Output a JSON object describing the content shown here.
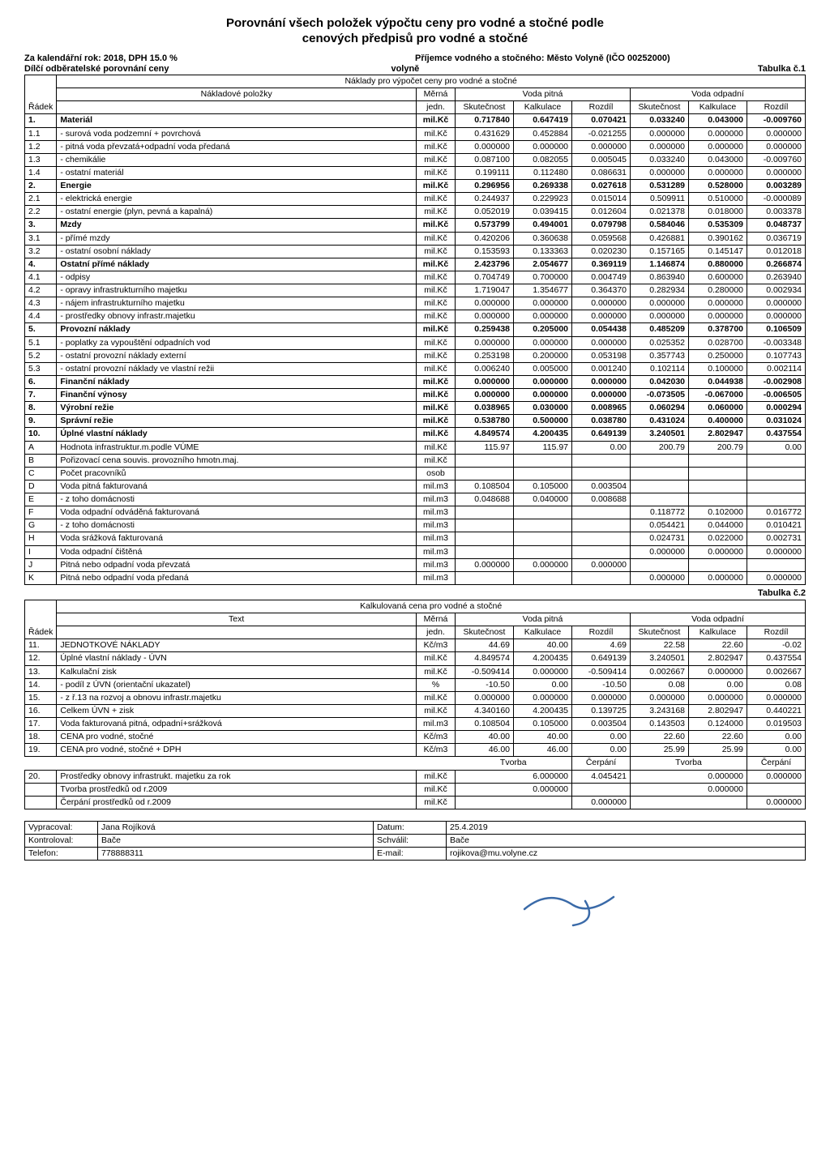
{
  "title1": "Porovnání všech položek výpočtu ceny pro vodné a stočné podle",
  "title2": "cenových předpisů pro vodné a stočné",
  "meta": {
    "year_line": "Za kalendářní rok: 2018, DPH 15.0 %",
    "recipient": "Příjemce vodného a stočného: Město Volyně (IČO 00252000)",
    "sub_line_left": "Dílčí odběratelské porovnání ceny",
    "sub_line_mid": "volyně",
    "tab1": "Tabulka č.1",
    "tab2": "Tabulka č.2"
  },
  "t1": {
    "hdr_top": "Náklady pro výpočet ceny pro vodné a stočné",
    "col_nakl": "Nákladové položky",
    "col_merna": "Měrná",
    "col_jedn": "jedn.",
    "col_radek": "Řádek",
    "grp_pitna": "Voda pitná",
    "grp_odpad": "Voda odpadní",
    "col_skut": "Skutečnost",
    "col_kalk": "Kalkulace",
    "col_rozd": "Rozdíl",
    "rows": [
      {
        "r": "1.",
        "label": "Materiál",
        "u": "mil.Kč",
        "v": [
          "0.717840",
          "0.647419",
          "0.070421",
          "0.033240",
          "0.043000",
          "-0.009760"
        ],
        "b": 1
      },
      {
        "r": "1.1",
        "label": "- surová voda podzemní + povrchová",
        "u": "mil.Kč",
        "v": [
          "0.431629",
          "0.452884",
          "-0.021255",
          "0.000000",
          "0.000000",
          "0.000000"
        ]
      },
      {
        "r": "1.2",
        "label": "- pitná voda převzatá+odpadní voda předaná",
        "u": "mil.Kč",
        "v": [
          "0.000000",
          "0.000000",
          "0.000000",
          "0.000000",
          "0.000000",
          "0.000000"
        ]
      },
      {
        "r": "1.3",
        "label": "- chemikálie",
        "u": "mil.Kč",
        "v": [
          "0.087100",
          "0.082055",
          "0.005045",
          "0.033240",
          "0.043000",
          "-0.009760"
        ]
      },
      {
        "r": "1.4",
        "label": "- ostatní materiál",
        "u": "mil.Kč",
        "v": [
          "0.199111",
          "0.112480",
          "0.086631",
          "0.000000",
          "0.000000",
          "0.000000"
        ]
      },
      {
        "r": "2.",
        "label": "Energie",
        "u": "mil.Kč",
        "v": [
          "0.296956",
          "0.269338",
          "0.027618",
          "0.531289",
          "0.528000",
          "0.003289"
        ],
        "b": 1
      },
      {
        "r": "2.1",
        "label": "- elektrická energie",
        "u": "mil.Kč",
        "v": [
          "0.244937",
          "0.229923",
          "0.015014",
          "0.509911",
          "0.510000",
          "-0.000089"
        ]
      },
      {
        "r": "2.2",
        "label": "- ostatní energie (plyn, pevná a kapalná)",
        "u": "mil.Kč",
        "v": [
          "0.052019",
          "0.039415",
          "0.012604",
          "0.021378",
          "0.018000",
          "0.003378"
        ]
      },
      {
        "r": "3.",
        "label": "Mzdy",
        "u": "mil.Kč",
        "v": [
          "0.573799",
          "0.494001",
          "0.079798",
          "0.584046",
          "0.535309",
          "0.048737"
        ],
        "b": 1
      },
      {
        "r": "3.1",
        "label": "- přímé mzdy",
        "u": "mil.Kč",
        "v": [
          "0.420206",
          "0.360638",
          "0.059568",
          "0.426881",
          "0.390162",
          "0.036719"
        ]
      },
      {
        "r": "3.2",
        "label": "- ostatní osobní náklady",
        "u": "mil.Kč",
        "v": [
          "0.153593",
          "0.133363",
          "0.020230",
          "0.157165",
          "0.145147",
          "0.012018"
        ]
      },
      {
        "r": "4.",
        "label": "Ostatní přímé náklady",
        "u": "mil.Kč",
        "v": [
          "2.423796",
          "2.054677",
          "0.369119",
          "1.146874",
          "0.880000",
          "0.266874"
        ],
        "b": 1
      },
      {
        "r": "4.1",
        "label": "- odpisy",
        "u": "mil.Kč",
        "v": [
          "0.704749",
          "0.700000",
          "0.004749",
          "0.863940",
          "0.600000",
          "0.263940"
        ]
      },
      {
        "r": "4.2",
        "label": "- opravy infrastrukturního majetku",
        "u": "mil.Kč",
        "v": [
          "1.719047",
          "1.354677",
          "0.364370",
          "0.282934",
          "0.280000",
          "0.002934"
        ]
      },
      {
        "r": "4.3",
        "label": "- nájem infrastrukturního majetku",
        "u": "mil.Kč",
        "v": [
          "0.000000",
          "0.000000",
          "0.000000",
          "0.000000",
          "0.000000",
          "0.000000"
        ]
      },
      {
        "r": "4.4",
        "label": "- prostředky obnovy infrastr.majetku",
        "u": "mil.Kč",
        "v": [
          "0.000000",
          "0.000000",
          "0.000000",
          "0.000000",
          "0.000000",
          "0.000000"
        ]
      },
      {
        "r": "5.",
        "label": "Provozní náklady",
        "u": "mil.Kč",
        "v": [
          "0.259438",
          "0.205000",
          "0.054438",
          "0.485209",
          "0.378700",
          "0.106509"
        ],
        "b": 1
      },
      {
        "r": "5.1",
        "label": "- poplatky za vypouštění odpadních vod",
        "u": "mil.Kč",
        "v": [
          "0.000000",
          "0.000000",
          "0.000000",
          "0.025352",
          "0.028700",
          "-0.003348"
        ]
      },
      {
        "r": "5.2",
        "label": "- ostatní provozní náklady externí",
        "u": "mil.Kč",
        "v": [
          "0.253198",
          "0.200000",
          "0.053198",
          "0.357743",
          "0.250000",
          "0.107743"
        ]
      },
      {
        "r": "5.3",
        "label": "- ostatní provozní náklady ve vlastní režii",
        "u": "mil.Kč",
        "v": [
          "0.006240",
          "0.005000",
          "0.001240",
          "0.102114",
          "0.100000",
          "0.002114"
        ]
      },
      {
        "r": "6.",
        "label": "Finanční náklady",
        "u": "mil.Kč",
        "v": [
          "0.000000",
          "0.000000",
          "0.000000",
          "0.042030",
          "0.044938",
          "-0.002908"
        ],
        "b": 1
      },
      {
        "r": "7.",
        "label": "Finanční výnosy",
        "u": "mil.Kč",
        "v": [
          "0.000000",
          "0.000000",
          "0.000000",
          "-0.073505",
          "-0.067000",
          "-0.006505"
        ],
        "b": 1
      },
      {
        "r": "8.",
        "label": "Výrobní režie",
        "u": "mil.Kč",
        "v": [
          "0.038965",
          "0.030000",
          "0.008965",
          "0.060294",
          "0.060000",
          "0.000294"
        ],
        "b": 1
      },
      {
        "r": "9.",
        "label": "Správní režie",
        "u": "mil.Kč",
        "v": [
          "0.538780",
          "0.500000",
          "0.038780",
          "0.431024",
          "0.400000",
          "0.031024"
        ],
        "b": 1
      },
      {
        "r": "10.",
        "label": "Úplné vlastní náklady",
        "u": "mil.Kč",
        "v": [
          "4.849574",
          "4.200435",
          "0.649139",
          "3.240501",
          "2.802947",
          "0.437554"
        ],
        "b": 1
      },
      {
        "r": "A",
        "label": "Hodnota infrastruktur.m.podle VÚME",
        "u": "mil.Kč",
        "v": [
          "115.97",
          "115.97",
          "0.00",
          "200.79",
          "200.79",
          "0.00"
        ]
      },
      {
        "r": "B",
        "label": "Pořizovací cena souvis. provozního hmotn.maj.",
        "u": "mil.Kč",
        "v": [
          "",
          "",
          "",
          "",
          "",
          ""
        ]
      },
      {
        "r": "C",
        "label": "Počet pracovníků",
        "u": "osob",
        "v": [
          "",
          "",
          "",
          "",
          "",
          ""
        ]
      },
      {
        "r": "D",
        "label": "Voda pitná fakturovaná",
        "u": "mil.m3",
        "v": [
          "0.108504",
          "0.105000",
          "0.003504",
          "",
          "",
          ""
        ]
      },
      {
        "r": "E",
        "label": "- z toho domácnosti",
        "u": "mil.m3",
        "v": [
          "0.048688",
          "0.040000",
          "0.008688",
          "",
          "",
          ""
        ]
      },
      {
        "r": "F",
        "label": "Voda odpadní odváděná fakturovaná",
        "u": "mil.m3",
        "v": [
          "",
          "",
          "",
          "0.118772",
          "0.102000",
          "0.016772"
        ]
      },
      {
        "r": "G",
        "label": "- z toho domácnosti",
        "u": "mil.m3",
        "v": [
          "",
          "",
          "",
          "0.054421",
          "0.044000",
          "0.010421"
        ]
      },
      {
        "r": "H",
        "label": "Voda srážková fakturovaná",
        "u": "mil.m3",
        "v": [
          "",
          "",
          "",
          "0.024731",
          "0.022000",
          "0.002731"
        ]
      },
      {
        "r": "I",
        "label": "Voda odpadní čištěná",
        "u": "mil.m3",
        "v": [
          "",
          "",
          "",
          "0.000000",
          "0.000000",
          "0.000000"
        ]
      },
      {
        "r": "J",
        "label": "Pitná nebo odpadní voda převzatá",
        "u": "mil.m3",
        "v": [
          "0.000000",
          "0.000000",
          "0.000000",
          "",
          "",
          ""
        ]
      },
      {
        "r": "K",
        "label": "Pitná nebo odpadní voda předaná",
        "u": "mil.m3",
        "v": [
          "",
          "",
          "",
          "0.000000",
          "0.000000",
          "0.000000"
        ]
      }
    ]
  },
  "t2": {
    "hdr_top": "Kalkulovaná cena pro vodné a stočné",
    "col_text": "Text",
    "rows": [
      {
        "r": "11.",
        "label": "JEDNOTKOVÉ NÁKLADY",
        "u": "Kč/m3",
        "v": [
          "44.69",
          "40.00",
          "4.69",
          "22.58",
          "22.60",
          "-0.02"
        ]
      },
      {
        "r": "12.",
        "label": "Úplné vlastní náklady - ÚVN",
        "u": "mil.Kč",
        "v": [
          "4.849574",
          "4.200435",
          "0.649139",
          "3.240501",
          "2.802947",
          "0.437554"
        ]
      },
      {
        "r": "13.",
        "label": "Kalkulační zisk",
        "u": "mil.Kč",
        "v": [
          "-0.509414",
          "0.000000",
          "-0.509414",
          "0.002667",
          "0.000000",
          "0.002667"
        ]
      },
      {
        "r": "14.",
        "label": "- podíl z ÚVN (orientační ukazatel)",
        "u": "%",
        "v": [
          "-10.50",
          "0.00",
          "-10.50",
          "0.08",
          "0.00",
          "0.08"
        ]
      },
      {
        "r": "15.",
        "label": "- z ř.13 na rozvoj a obnovu infrastr.majetku",
        "u": "mil.Kč",
        "v": [
          "0.000000",
          "0.000000",
          "0.000000",
          "0.000000",
          "0.000000",
          "0.000000"
        ]
      },
      {
        "r": "16.",
        "label": "Celkem ÚVN + zisk",
        "u": "mil.Kč",
        "v": [
          "4.340160",
          "4.200435",
          "0.139725",
          "3.243168",
          "2.802947",
          "0.440221"
        ]
      },
      {
        "r": "17.",
        "label": "Voda fakturovaná pitná, odpadní+srážková",
        "u": "mil.m3",
        "v": [
          "0.108504",
          "0.105000",
          "0.003504",
          "0.143503",
          "0.124000",
          "0.019503"
        ]
      },
      {
        "r": "18.",
        "label": "CENA pro vodné, stočné",
        "u": "Kč/m3",
        "v": [
          "40.00",
          "40.00",
          "0.00",
          "22.60",
          "22.60",
          "0.00"
        ]
      },
      {
        "r": "19.",
        "label": "CENA pro vodné, stočné + DPH",
        "u": "Kč/m3",
        "v": [
          "46.00",
          "46.00",
          "0.00",
          "25.99",
          "25.99",
          "0.00"
        ]
      }
    ],
    "sub_hdr": {
      "tvorba": "Tvorba",
      "cerpani": "Čerpání"
    },
    "rows2": [
      {
        "r": "20.",
        "label": "Prostředky obnovy infrastrukt. majetku za rok",
        "u": "mil.Kč",
        "v": [
          "6.000000",
          "4.045421",
          "0.000000",
          "0.000000"
        ]
      },
      {
        "r": "",
        "label": "Tvorba prostředků od r.2009",
        "u": "mil.Kč",
        "v": [
          "0.000000",
          "",
          "0.000000",
          ""
        ]
      },
      {
        "r": "",
        "label": "Čerpání prostředků od r.2009",
        "u": "mil.Kč",
        "v": [
          "",
          "0.000000",
          "",
          "0.000000"
        ]
      }
    ]
  },
  "footer": {
    "labels": {
      "vypracoval": "Vypracoval:",
      "kontroloval": "Kontroloval:",
      "telefon": "Telefon:",
      "datum": "Datum:",
      "schvalil": "Schválil:",
      "email": "E-mail:"
    },
    "values": {
      "vypracoval": "Jana Rojíková",
      "kontroloval": "Bače",
      "telefon": "778888311",
      "datum": "25.4.2019",
      "schvalil": "Bače",
      "email": "rojikova@mu.volyne.cz"
    }
  },
  "style": {
    "col_widths_t1": {
      "radek": "38px",
      "label": "auto",
      "unit": "48px",
      "num": "72px"
    },
    "sig_color": "#3a6aa8"
  }
}
